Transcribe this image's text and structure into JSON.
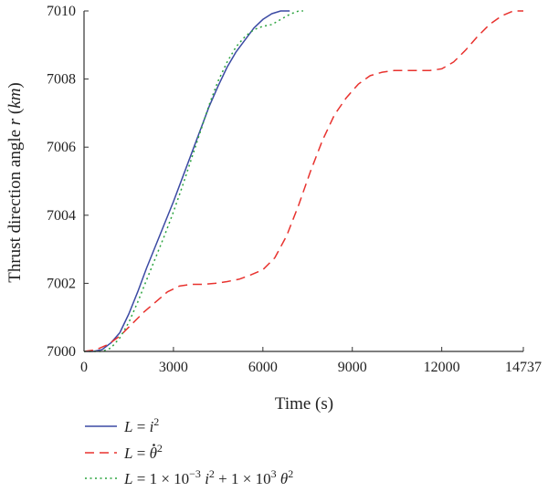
{
  "chart_data": {
    "type": "line",
    "title": "",
    "xlabel": "Time (s)",
    "ylabel_text": "Thrust direction angle ",
    "ylabel_var": "r",
    "ylabel_unit": "km",
    "xlim": [
      0,
      14737
    ],
    "ylim": [
      7000,
      7010
    ],
    "x_ticks": [
      0,
      3000,
      6000,
      9000,
      12000,
      14737
    ],
    "x_tick_labels": [
      "0",
      "3000",
      "6000",
      "9000",
      "12000",
      "14737"
    ],
    "y_ticks": [
      7000,
      7002,
      7004,
      7006,
      7008,
      7010
    ],
    "y_tick_labels": [
      "7000",
      "7002",
      "7004",
      "7006",
      "7008",
      "7010"
    ],
    "grid": false,
    "legend_position": "bottom-left",
    "colors": {
      "series1": "#3b4aa3",
      "series2": "#e8322e",
      "series3": "#2aa33d",
      "axis": "#333333"
    },
    "series": [
      {
        "legend_lhs": "L",
        "legend_rhs": "i",
        "legend_sup": "2",
        "style": "solid",
        "points": [
          [
            0,
            7000
          ],
          [
            300,
            7000
          ],
          [
            600,
            7000.05
          ],
          [
            900,
            7000.25
          ],
          [
            1200,
            7000.55
          ],
          [
            1500,
            7001.1
          ],
          [
            1800,
            7001.75
          ],
          [
            2100,
            7002.45
          ],
          [
            2400,
            7003.1
          ],
          [
            2700,
            7003.75
          ],
          [
            3000,
            7004.4
          ],
          [
            3300,
            7005.1
          ],
          [
            3600,
            7005.8
          ],
          [
            3900,
            7006.5
          ],
          [
            4200,
            7007.2
          ],
          [
            4500,
            7007.8
          ],
          [
            4800,
            7008.35
          ],
          [
            5100,
            7008.8
          ],
          [
            5400,
            7009.15
          ],
          [
            5700,
            7009.5
          ],
          [
            6000,
            7009.75
          ],
          [
            6300,
            7009.92
          ],
          [
            6600,
            7010
          ],
          [
            6900,
            7010
          ]
        ]
      },
      {
        "legend_lhs": "L",
        "legend_rhs": "θ",
        "legend_sup": "2",
        "style": "dashed",
        "points": [
          [
            0,
            7000
          ],
          [
            400,
            7000.05
          ],
          [
            800,
            7000.2
          ],
          [
            1200,
            7000.45
          ],
          [
            1600,
            7000.8
          ],
          [
            2000,
            7001.15
          ],
          [
            2400,
            7001.45
          ],
          [
            2800,
            7001.75
          ],
          [
            3200,
            7001.92
          ],
          [
            3600,
            7001.97
          ],
          [
            4000,
            7001.97
          ],
          [
            4400,
            7002.0
          ],
          [
            4800,
            7002.05
          ],
          [
            5200,
            7002.12
          ],
          [
            5600,
            7002.25
          ],
          [
            6000,
            7002.4
          ],
          [
            6400,
            7002.75
          ],
          [
            6800,
            7003.4
          ],
          [
            7200,
            7004.3
          ],
          [
            7600,
            7005.3
          ],
          [
            8000,
            7006.2
          ],
          [
            8400,
            7006.95
          ],
          [
            8800,
            7007.45
          ],
          [
            9200,
            7007.85
          ],
          [
            9600,
            7008.1
          ],
          [
            10000,
            7008.2
          ],
          [
            10400,
            7008.25
          ],
          [
            10800,
            7008.25
          ],
          [
            11200,
            7008.25
          ],
          [
            11600,
            7008.25
          ],
          [
            12000,
            7008.3
          ],
          [
            12400,
            7008.5
          ],
          [
            12800,
            7008.85
          ],
          [
            13200,
            7009.25
          ],
          [
            13600,
            7009.6
          ],
          [
            14000,
            7009.85
          ],
          [
            14400,
            7010
          ],
          [
            14737,
            7010
          ]
        ]
      },
      {
        "legend_lhs": "L",
        "legend_coef1": "1 × 10",
        "legend_exp1": "−3",
        "legend_var1": "i",
        "legend_sup1": "2",
        "legend_coef2": "+ 1 × 10",
        "legend_exp2": "3",
        "legend_var2": "θ",
        "legend_sup2": "2",
        "style": "dotted",
        "points": [
          [
            0,
            7000
          ],
          [
            300,
            7000
          ],
          [
            600,
            7000
          ],
          [
            900,
            7000.1
          ],
          [
            1200,
            7000.4
          ],
          [
            1500,
            7000.85
          ],
          [
            1800,
            7001.45
          ],
          [
            2100,
            7002.1
          ],
          [
            2400,
            7002.75
          ],
          [
            2700,
            7003.4
          ],
          [
            3000,
            7004.1
          ],
          [
            3300,
            7004.85
          ],
          [
            3600,
            7005.65
          ],
          [
            3900,
            7006.45
          ],
          [
            4200,
            7007.25
          ],
          [
            4500,
            7007.95
          ],
          [
            4800,
            7008.5
          ],
          [
            5100,
            7008.95
          ],
          [
            5400,
            7009.25
          ],
          [
            5700,
            7009.45
          ],
          [
            6000,
            7009.55
          ],
          [
            6300,
            7009.6
          ],
          [
            6600,
            7009.75
          ],
          [
            6900,
            7009.9
          ],
          [
            7200,
            7010
          ],
          [
            7350,
            7010
          ]
        ]
      }
    ]
  }
}
